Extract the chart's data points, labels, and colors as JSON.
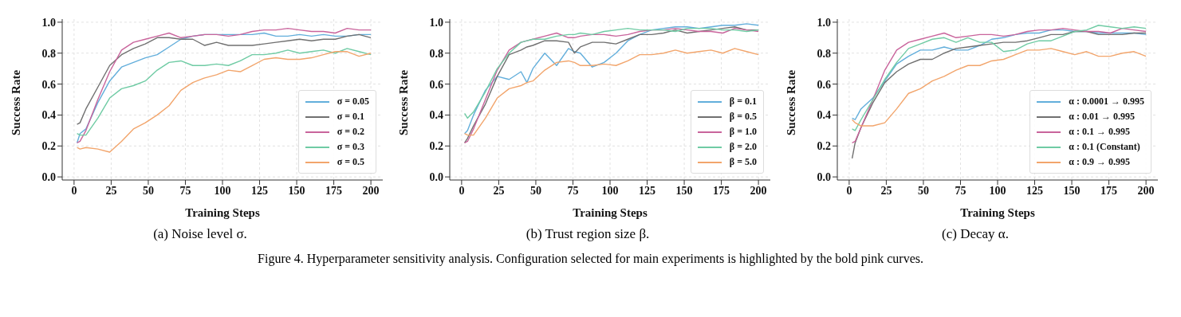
{
  "chart_data": [
    {
      "type": "line",
      "xlabel": "Training Steps",
      "ylabel": "Success Rate",
      "annotations": [
        "(a) Noise level σ."
      ],
      "grid": true,
      "legend": "bottom right",
      "xlim": [
        -8,
        208
      ],
      "xticks": [
        0,
        25,
        50,
        75,
        100,
        125,
        150,
        175,
        200
      ],
      "ylim": [
        -0.02,
        1.02
      ],
      "yticks": [
        {
          "value": 0,
          "label": "0.0"
        },
        {
          "value": 0.2,
          "label": "0.2"
        },
        {
          "value": 0.4,
          "label": "0.4"
        },
        {
          "value": 0.6,
          "label": "0.6"
        },
        {
          "value": 0.8,
          "label": "0.8"
        },
        {
          "value": 1,
          "label": "1.0"
        }
      ],
      "x": [
        2,
        4,
        8,
        16,
        24,
        32,
        40,
        48,
        56,
        64,
        72,
        80,
        88,
        96,
        104,
        112,
        120,
        128,
        136,
        144,
        152,
        160,
        168,
        176,
        184,
        192,
        200
      ],
      "series": [
        {
          "name": "σ = 0.05",
          "color": "#62aedb",
          "values": [
            0.22,
            0.28,
            0.31,
            0.48,
            0.62,
            0.71,
            0.74,
            0.77,
            0.79,
            0.84,
            0.89,
            0.91,
            0.92,
            0.92,
            0.92,
            0.92,
            0.92,
            0.93,
            0.91,
            0.91,
            0.92,
            0.91,
            0.92,
            0.91,
            0.91,
            0.92,
            0.92
          ]
        },
        {
          "name": "σ = 0.1",
          "color": "#707070",
          "values": [
            0.34,
            0.35,
            0.44,
            0.58,
            0.72,
            0.79,
            0.83,
            0.86,
            0.9,
            0.9,
            0.89,
            0.89,
            0.85,
            0.87,
            0.85,
            0.85,
            0.85,
            0.86,
            0.87,
            0.88,
            0.89,
            0.88,
            0.89,
            0.89,
            0.91,
            0.92,
            0.9
          ]
        },
        {
          "name": "σ = 0.2",
          "color": "#c9649c",
          "values": [
            0.22,
            0.23,
            0.3,
            0.5,
            0.68,
            0.82,
            0.87,
            0.89,
            0.91,
            0.93,
            0.9,
            0.91,
            0.92,
            0.92,
            0.91,
            0.92,
            0.94,
            0.95,
            0.95,
            0.96,
            0.95,
            0.94,
            0.94,
            0.93,
            0.96,
            0.95,
            0.95
          ]
        },
        {
          "name": "σ = 0.3",
          "color": "#6fcba4",
          "values": [
            0.28,
            0.27,
            0.27,
            0.38,
            0.51,
            0.57,
            0.59,
            0.62,
            0.69,
            0.74,
            0.75,
            0.72,
            0.72,
            0.73,
            0.72,
            0.75,
            0.79,
            0.79,
            0.8,
            0.82,
            0.8,
            0.81,
            0.82,
            0.8,
            0.83,
            0.81,
            0.79
          ]
        },
        {
          "name": "σ = 0.5",
          "color": "#f2a56c",
          "values": [
            0.19,
            0.18,
            0.19,
            0.18,
            0.16,
            0.23,
            0.31,
            0.35,
            0.4,
            0.46,
            0.56,
            0.61,
            0.64,
            0.66,
            0.69,
            0.68,
            0.72,
            0.76,
            0.77,
            0.76,
            0.76,
            0.77,
            0.79,
            0.81,
            0.81,
            0.78,
            0.8
          ]
        }
      ]
    },
    {
      "type": "line",
      "xlabel": "Training Steps",
      "ylabel": "Success Rate",
      "annotations": [
        "(b) Trust region size β."
      ],
      "grid": true,
      "legend": "bottom right",
      "xlim": [
        -8,
        208
      ],
      "xticks": [
        0,
        25,
        50,
        75,
        100,
        125,
        150,
        175,
        200
      ],
      "ylim": [
        -0.02,
        1.02
      ],
      "yticks": [
        {
          "value": 0,
          "label": "0.0"
        },
        {
          "value": 0.2,
          "label": "0.2"
        },
        {
          "value": 0.4,
          "label": "0.4"
        },
        {
          "value": 0.6,
          "label": "0.6"
        },
        {
          "value": 0.8,
          "label": "0.8"
        },
        {
          "value": 1,
          "label": "1.0"
        }
      ],
      "x": [
        2,
        4,
        8,
        16,
        24,
        32,
        40,
        44,
        48,
        56,
        64,
        72,
        76,
        80,
        88,
        96,
        104,
        112,
        120,
        128,
        136,
        144,
        152,
        160,
        168,
        176,
        184,
        192,
        200
      ],
      "series": [
        {
          "name": "β = 0.1",
          "color": "#62aedb",
          "values": [
            0.28,
            0.3,
            0.4,
            0.56,
            0.65,
            0.63,
            0.68,
            0.61,
            0.7,
            0.8,
            0.72,
            0.83,
            0.81,
            0.8,
            0.71,
            0.74,
            0.8,
            0.88,
            0.92,
            0.95,
            0.96,
            0.97,
            0.97,
            0.96,
            0.97,
            0.98,
            0.98,
            0.99,
            0.98
          ]
        },
        {
          "name": "β = 0.5",
          "color": "#707070",
          "values": [
            0.22,
            0.25,
            0.33,
            0.47,
            0.65,
            0.79,
            0.82,
            0.84,
            0.85,
            0.88,
            0.88,
            0.87,
            0.8,
            0.84,
            0.87,
            0.87,
            0.86,
            0.89,
            0.92,
            0.92,
            0.93,
            0.95,
            0.93,
            0.94,
            0.95,
            0.96,
            0.97,
            0.95,
            0.95
          ]
        },
        {
          "name": "β = 1.0",
          "color": "#c9649c",
          "values": [
            0.22,
            0.23,
            0.31,
            0.5,
            0.69,
            0.82,
            0.87,
            0.88,
            0.89,
            0.91,
            0.93,
            0.9,
            0.9,
            0.91,
            0.92,
            0.92,
            0.91,
            0.92,
            0.94,
            0.95,
            0.95,
            0.96,
            0.95,
            0.94,
            0.94,
            0.93,
            0.96,
            0.95,
            0.94
          ]
        },
        {
          "name": "β = 2.0",
          "color": "#6fcba4",
          "values": [
            0.41,
            0.38,
            0.42,
            0.55,
            0.7,
            0.8,
            0.87,
            0.88,
            0.89,
            0.89,
            0.91,
            0.92,
            0.92,
            0.93,
            0.92,
            0.94,
            0.95,
            0.96,
            0.95,
            0.95,
            0.95,
            0.94,
            0.96,
            0.96,
            0.96,
            0.95,
            0.95,
            0.94,
            0.95
          ]
        },
        {
          "name": "β = 5.0",
          "color": "#f2a56c",
          "values": [
            0.28,
            0.27,
            0.27,
            0.38,
            0.51,
            0.57,
            0.59,
            0.61,
            0.62,
            0.69,
            0.74,
            0.75,
            0.74,
            0.72,
            0.72,
            0.73,
            0.72,
            0.75,
            0.79,
            0.79,
            0.8,
            0.82,
            0.8,
            0.81,
            0.82,
            0.8,
            0.83,
            0.81,
            0.79
          ]
        }
      ]
    },
    {
      "type": "line",
      "xlabel": "Training Steps",
      "ylabel": "Success Rate",
      "annotations": [
        "(c) Decay α.",
        "Figure 4. Hyperparameter sensitivity analysis. Configuration selected for main experiments is highlighted by the bold pink curves."
      ],
      "grid": true,
      "legend": "bottom right",
      "xlim": [
        -8,
        208
      ],
      "xticks": [
        0,
        25,
        50,
        75,
        100,
        125,
        150,
        175,
        200
      ],
      "ylim": [
        -0.02,
        1.02
      ],
      "yticks": [
        {
          "value": 0,
          "label": "0.0"
        },
        {
          "value": 0.2,
          "label": "0.2"
        },
        {
          "value": 0.4,
          "label": "0.4"
        },
        {
          "value": 0.6,
          "label": "0.6"
        },
        {
          "value": 0.8,
          "label": "0.8"
        },
        {
          "value": 1,
          "label": "1.0"
        }
      ],
      "x": [
        2,
        4,
        8,
        16,
        24,
        32,
        40,
        48,
        56,
        64,
        72,
        80,
        88,
        96,
        104,
        112,
        120,
        128,
        136,
        144,
        152,
        160,
        168,
        176,
        184,
        192,
        200
      ],
      "series": [
        {
          "name": "α : 0.0001 → 0.995",
          "color": "#62aedb",
          "values": [
            0.38,
            0.37,
            0.44,
            0.51,
            0.62,
            0.73,
            0.78,
            0.82,
            0.82,
            0.84,
            0.82,
            0.82,
            0.85,
            0.89,
            0.9,
            0.92,
            0.93,
            0.93,
            0.95,
            0.95,
            0.94,
            0.94,
            0.93,
            0.93,
            0.93,
            0.93,
            0.92
          ]
        },
        {
          "name": "α : 0.01 → 0.995",
          "color": "#707070",
          "values": [
            0.12,
            0.22,
            0.32,
            0.48,
            0.61,
            0.68,
            0.73,
            0.76,
            0.76,
            0.8,
            0.83,
            0.84,
            0.85,
            0.86,
            0.87,
            0.87,
            0.88,
            0.9,
            0.92,
            0.92,
            0.94,
            0.94,
            0.92,
            0.92,
            0.92,
            0.93,
            0.93
          ]
        },
        {
          "name": "α : 0.1 → 0.995",
          "color": "#c9649c",
          "values": [
            0.22,
            0.23,
            0.32,
            0.5,
            0.69,
            0.82,
            0.87,
            0.89,
            0.91,
            0.93,
            0.9,
            0.91,
            0.92,
            0.92,
            0.91,
            0.92,
            0.94,
            0.95,
            0.95,
            0.96,
            0.95,
            0.94,
            0.94,
            0.93,
            0.96,
            0.95,
            0.94
          ]
        },
        {
          "name": "α : 0.1 (Constant)",
          "color": "#6fcba4",
          "values": [
            0.31,
            0.3,
            0.37,
            0.5,
            0.63,
            0.74,
            0.83,
            0.86,
            0.89,
            0.9,
            0.87,
            0.9,
            0.87,
            0.87,
            0.81,
            0.82,
            0.86,
            0.88,
            0.88,
            0.91,
            0.94,
            0.95,
            0.98,
            0.97,
            0.96,
            0.97,
            0.96
          ]
        },
        {
          "name": "α : 0.9 → 0.995",
          "color": "#f2a56c",
          "values": [
            0.37,
            0.35,
            0.33,
            0.33,
            0.35,
            0.44,
            0.54,
            0.57,
            0.62,
            0.65,
            0.69,
            0.72,
            0.72,
            0.75,
            0.76,
            0.79,
            0.82,
            0.82,
            0.83,
            0.81,
            0.79,
            0.81,
            0.78,
            0.78,
            0.8,
            0.81,
            0.78
          ]
        }
      ]
    }
  ]
}
